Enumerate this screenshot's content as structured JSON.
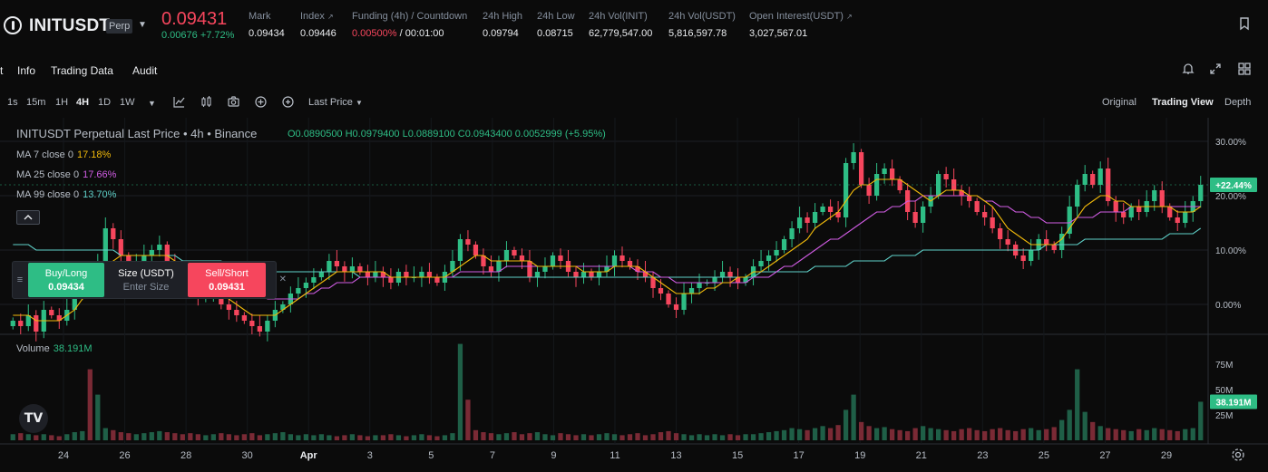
{
  "header": {
    "symbol": "INITUSDT",
    "badge": "Perp",
    "last_price": "0.09431",
    "change": "0.00676 +7.72%",
    "stats": [
      {
        "label": "Mark",
        "value": "0.09434"
      },
      {
        "label": "Index",
        "value": "0.09446"
      },
      {
        "label": "Funding (4h) / Countdown",
        "value_rate": "0.00500%",
        "value_time": " / 00:01:00"
      },
      {
        "label": "24h High",
        "value": "0.09794"
      },
      {
        "label": "24h Low",
        "value": "0.08715"
      },
      {
        "label": "24h Vol(INIT)",
        "value": "62,779,547.00"
      },
      {
        "label": "24h Vol(USDT)",
        "value": "5,816,597.78"
      },
      {
        "label": "Open Interest(USDT)",
        "value": "3,027,567.01"
      }
    ]
  },
  "tabs": [
    "Info",
    "Trading Data",
    "Audit"
  ],
  "toolbar": {
    "intervals": [
      "1s",
      "15m",
      "1H",
      "4H",
      "1D",
      "1W"
    ],
    "active_interval": "4H",
    "price_type": "Last Price",
    "views": [
      "Original",
      "Trading View",
      "Depth"
    ],
    "active_view": "Trading View"
  },
  "legend": {
    "title": "INITUSDT Perpetual Last Price • 4h • Binance",
    "ohlc": "O0.0890500 H0.0979400 L0.0889100 C0.0943400 0.0052999 (+5.95%)",
    "ma": [
      {
        "label": "MA 7 close 0",
        "value": "17.18%",
        "color": "#f0b90b"
      },
      {
        "label": "MA 25 close 0",
        "value": "17.66%",
        "color": "#d05ce3"
      },
      {
        "label": "MA 99 close 0",
        "value": "13.70%",
        "color": "#5fd0c8"
      }
    ],
    "volume_label": "Volume",
    "volume_value": "38.191M"
  },
  "trade_widget": {
    "buy_label": "Buy/Long",
    "buy_price": "0.09434",
    "size_label": "Size (USDT)",
    "size_placeholder": "Enter Size",
    "sell_label": "Sell/Short",
    "sell_price": "0.09431"
  },
  "colors": {
    "up": "#2ebd85",
    "down": "#f6465d",
    "ma7": "#f0b90b",
    "ma25": "#d05ce3",
    "ma99": "#5fd0c8"
  },
  "chart_data": {
    "type": "candlestick",
    "x_ticks": [
      "24",
      "26",
      "28",
      "30",
      "Apr",
      "3",
      "5",
      "7",
      "9",
      "11",
      "13",
      "15",
      "17",
      "19",
      "21",
      "23",
      "25",
      "27",
      "29"
    ],
    "y_ticks": [
      "30.00%",
      "20.00%",
      "10.00%",
      "0.00%"
    ],
    "current_badge": "+22.44%",
    "volume_ticks": [
      "75M",
      "50M",
      "25M"
    ],
    "volume_badge": "38.191M",
    "y_range_pct": [
      -5,
      32
    ],
    "close_pct": [
      -3,
      -4,
      -2,
      -5,
      -1,
      -2,
      -3,
      -1,
      2,
      6,
      4,
      8,
      14,
      12,
      9,
      7,
      8,
      9,
      10,
      11,
      8,
      6,
      5,
      3,
      1,
      2,
      3,
      0,
      -1,
      -2,
      -3,
      -4,
      -5,
      -3,
      -1,
      0,
      2,
      3,
      4,
      5,
      6,
      8,
      7,
      6,
      7,
      6,
      5,
      6,
      5,
      4,
      6,
      5,
      5,
      6,
      5,
      4,
      6,
      8,
      12,
      11,
      9,
      7,
      6,
      8,
      10,
      9,
      8,
      5,
      6,
      7,
      9,
      8,
      6,
      5,
      6,
      5,
      6,
      7,
      9,
      8,
      7,
      6,
      5,
      3,
      2,
      0,
      -1,
      2,
      3,
      4,
      4,
      5,
      6,
      5,
      4,
      5,
      7,
      8,
      9,
      10,
      12,
      14,
      16,
      15,
      17,
      18,
      17,
      16,
      26,
      28,
      22,
      20,
      24,
      25,
      23,
      21,
      17,
      15,
      18,
      20,
      24,
      23,
      21,
      20,
      19,
      17,
      16,
      14,
      12,
      11,
      9,
      8,
      10,
      12,
      11,
      10,
      13,
      18,
      22,
      24,
      22,
      25,
      19,
      17,
      16,
      18,
      17,
      19,
      21,
      18,
      16,
      15,
      17,
      19,
      22
    ],
    "ma7_pct": [
      -2,
      -2,
      -2,
      -3,
      -3,
      -3,
      -3,
      -2,
      -1,
      1,
      2,
      4,
      6,
      8,
      9,
      9,
      9,
      9,
      9,
      9,
      9,
      8,
      7,
      6,
      5,
      4,
      3,
      2,
      1,
      0,
      -1,
      -2,
      -2,
      -2,
      -2,
      -1,
      0,
      1,
      2,
      3,
      4,
      5,
      6,
      6,
      6,
      6,
      6,
      6,
      6,
      5,
      5,
      5,
      5,
      5,
      5,
      5,
      5,
      6,
      7,
      8,
      9,
      9,
      8,
      8,
      8,
      8,
      8,
      8,
      7,
      7,
      7,
      7,
      7,
      7,
      6,
      6,
      6,
      6,
      7,
      7,
      7,
      7,
      6,
      5,
      4,
      3,
      2,
      2,
      2,
      2,
      3,
      3,
      4,
      4,
      5,
      5,
      6,
      6,
      7,
      8,
      9,
      10,
      11,
      12,
      14,
      15,
      16,
      17,
      19,
      21,
      22,
      22,
      23,
      23,
      23,
      23,
      22,
      21,
      20,
      19,
      20,
      21,
      21,
      21,
      20,
      20,
      19,
      18,
      16,
      14,
      13,
      12,
      11,
      11,
      11,
      11,
      12,
      14,
      16,
      18,
      19,
      20,
      20,
      19,
      19,
      18,
      18,
      18,
      18,
      18,
      18,
      17,
      17,
      17,
      18
    ],
    "ma25_pct": [
      4,
      4,
      3,
      3,
      3,
      2,
      2,
      2,
      2,
      2,
      3,
      3,
      4,
      5,
      5,
      5,
      6,
      6,
      6,
      6,
      6,
      6,
      6,
      6,
      5,
      5,
      5,
      4,
      4,
      3,
      3,
      2,
      2,
      1,
      1,
      1,
      1,
      1,
      2,
      2,
      3,
      3,
      4,
      4,
      4,
      5,
      5,
      5,
      5,
      5,
      5,
      5,
      5,
      5,
      5,
      5,
      5,
      5,
      6,
      6,
      6,
      6,
      6,
      6,
      7,
      7,
      7,
      7,
      7,
      7,
      7,
      7,
      7,
      7,
      7,
      7,
      7,
      7,
      7,
      7,
      7,
      6,
      6,
      6,
      5,
      5,
      4,
      4,
      4,
      4,
      4,
      4,
      4,
      4,
      4,
      4,
      5,
      5,
      5,
      6,
      7,
      7,
      8,
      9,
      10,
      11,
      12,
      12,
      13,
      14,
      15,
      16,
      17,
      17,
      18,
      18,
      19,
      19,
      20,
      20,
      20,
      20,
      20,
      20,
      20,
      20,
      19,
      19,
      18,
      18,
      17,
      17,
      16,
      16,
      15,
      15,
      15,
      15,
      16,
      16,
      16,
      17,
      17,
      17,
      17,
      18,
      18,
      18,
      18,
      18,
      18,
      18,
      18,
      18,
      18
    ],
    "ma99_pct": [
      11,
      11,
      11,
      10,
      10,
      10,
      10,
      10,
      10,
      10,
      10,
      10,
      10,
      10,
      9,
      9,
      9,
      9,
      9,
      9,
      9,
      9,
      8,
      8,
      8,
      8,
      8,
      8,
      7,
      7,
      7,
      7,
      7,
      6,
      6,
      6,
      6,
      6,
      6,
      6,
      6,
      6,
      6,
      6,
      6,
      5,
      5,
      5,
      5,
      5,
      5,
      5,
      5,
      5,
      5,
      5,
      5,
      5,
      5,
      5,
      5,
      5,
      5,
      5,
      5,
      5,
      5,
      5,
      5,
      5,
      5,
      5,
      5,
      5,
      5,
      5,
      5,
      5,
      5,
      5,
      5,
      5,
      5,
      5,
      5,
      5,
      5,
      5,
      5,
      5,
      5,
      5,
      5,
      5,
      5,
      5,
      5,
      6,
      6,
      6,
      6,
      6,
      6,
      6,
      7,
      7,
      7,
      7,
      7,
      8,
      8,
      8,
      8,
      8,
      9,
      9,
      9,
      9,
      10,
      10,
      10,
      10,
      10,
      10,
      10,
      10,
      10,
      10,
      10,
      10,
      10,
      10,
      10,
      10,
      11,
      11,
      11,
      11,
      11,
      12,
      12,
      12,
      12,
      12,
      12,
      12,
      12,
      12,
      12,
      12,
      13,
      13,
      13,
      13,
      14
    ],
    "volume_m": [
      6,
      7,
      6,
      5,
      6,
      5,
      4,
      6,
      8,
      9,
      70,
      45,
      12,
      10,
      8,
      7,
      6,
      7,
      8,
      9,
      8,
      7,
      6,
      7,
      6,
      5,
      6,
      7,
      6,
      5,
      6,
      7,
      5,
      6,
      7,
      8,
      6,
      5,
      6,
      5,
      6,
      5,
      4,
      5,
      6,
      5,
      4,
      5,
      5,
      6,
      5,
      4,
      5,
      6,
      5,
      4,
      5,
      7,
      95,
      40,
      10,
      8,
      7,
      6,
      7,
      8,
      6,
      7,
      8,
      6,
      5,
      7,
      6,
      5,
      6,
      5,
      6,
      7,
      6,
      5,
      6,
      7,
      5,
      6,
      8,
      9,
      7,
      6,
      5,
      6,
      5,
      6,
      5,
      6,
      5,
      6,
      6,
      7,
      8,
      9,
      10,
      12,
      11,
      10,
      12,
      14,
      12,
      15,
      30,
      45,
      18,
      14,
      12,
      13,
      11,
      10,
      9,
      12,
      14,
      12,
      11,
      10,
      9,
      11,
      12,
      10,
      9,
      11,
      12,
      10,
      9,
      11,
      12,
      10,
      11,
      13,
      20,
      30,
      70,
      28,
      18,
      14,
      12,
      11,
      10,
      9,
      11,
      10,
      12,
      11,
      10,
      9,
      11,
      12,
      38
    ]
  }
}
